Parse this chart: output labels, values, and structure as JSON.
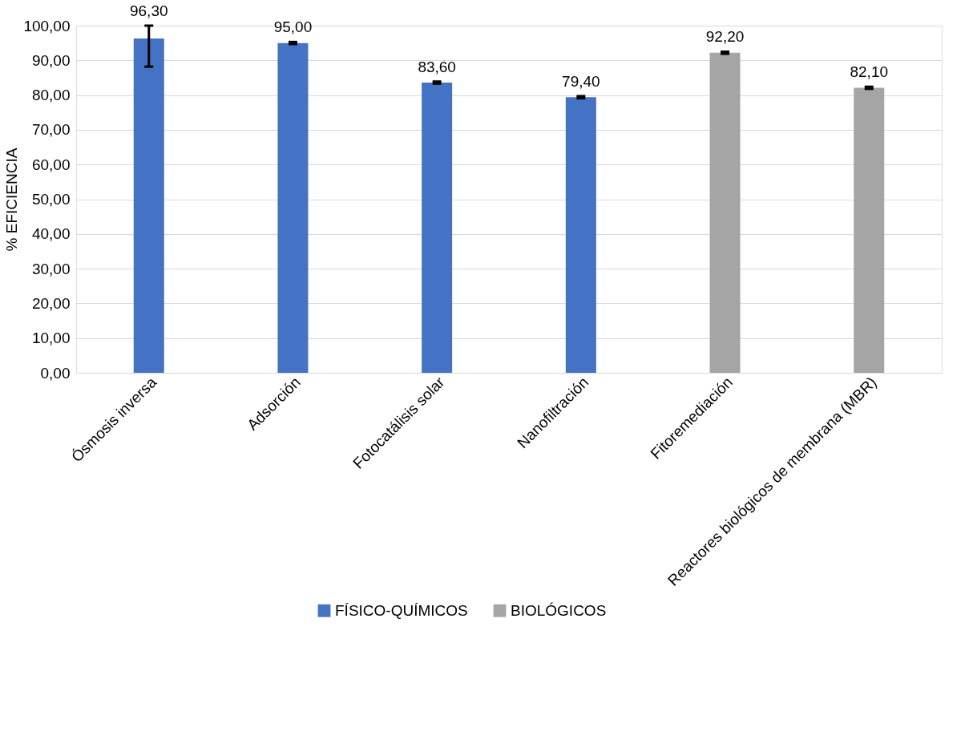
{
  "chart_data": {
    "type": "bar",
    "ylabel": "% EFICIENCIA",
    "categories": [
      "Ósmosis inversa",
      "Adsorción",
      "Fotocatálisis solar",
      "Nanofiltración",
      "Fitoremediación",
      "Reactores biológicos de  membrana (MBR)"
    ],
    "series": [
      {
        "name": "FÍSICO-QUÍMICOS",
        "color": "#4472c4",
        "values": [
          96.3,
          95.0,
          83.6,
          79.4,
          null,
          null
        ],
        "errors": [
          [
            88.2,
            100
          ],
          0.3,
          0.3,
          0.3,
          null,
          null
        ],
        "value_labels": [
          "96,30",
          "95,00",
          "83,60",
          "79,40",
          null,
          null
        ]
      },
      {
        "name": "BIOLÓGICOS",
        "color": "#a5a5a5",
        "values": [
          null,
          null,
          null,
          null,
          92.2,
          82.1
        ],
        "errors": [
          null,
          null,
          null,
          null,
          0.3,
          0.3
        ],
        "value_labels": [
          null,
          null,
          null,
          null,
          "92,20",
          "82,10"
        ]
      }
    ],
    "ylim": [
      0,
      100
    ],
    "yticks": [
      {
        "value": 0,
        "label": "0,00"
      },
      {
        "value": 10,
        "label": "10,00"
      },
      {
        "value": 20,
        "label": "20,00"
      },
      {
        "value": 30,
        "label": "30,00"
      },
      {
        "value": 40,
        "label": "40,00"
      },
      {
        "value": 50,
        "label": "50,00"
      },
      {
        "value": 60,
        "label": "60,00"
      },
      {
        "value": 70,
        "label": "70,00"
      },
      {
        "value": 80,
        "label": "80,00"
      },
      {
        "value": 90,
        "label": "90,00"
      },
      {
        "value": 100,
        "label": "100,00"
      }
    ],
    "grid": "y",
    "legend": "bottom"
  }
}
